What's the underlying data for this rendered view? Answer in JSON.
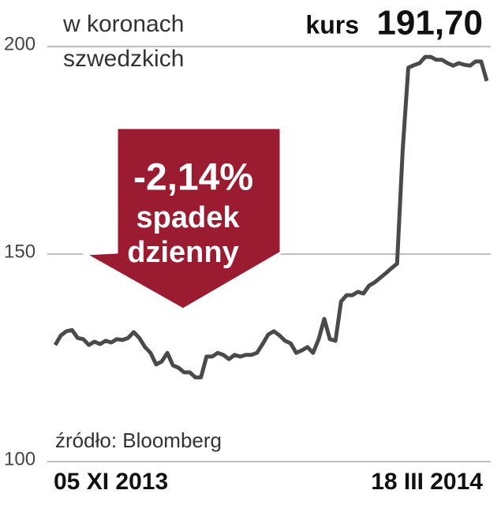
{
  "chart_data": {
    "type": "line",
    "subtitle_lines": [
      "w koronach",
      "szwedzkich"
    ],
    "price_caption": "kurs",
    "last_price": {
      "value": 191.7,
      "label": "191,70"
    },
    "change": {
      "value": -2.14,
      "label": "-2,14%"
    },
    "annotation_lines": [
      "spadek",
      "dzienny"
    ],
    "source": "źródło: Bloomberg",
    "categories": [
      "05 XI 2013",
      null,
      null,
      null,
      null,
      null,
      null,
      null,
      null,
      null,
      null,
      null,
      null,
      null,
      null,
      null,
      null,
      null,
      null,
      null,
      null,
      null,
      null,
      null,
      null,
      null,
      null,
      null,
      null,
      null,
      null,
      null,
      null,
      null,
      null,
      null,
      null,
      null,
      null,
      null,
      null,
      null,
      null,
      null,
      null,
      null,
      null,
      null,
      null,
      null,
      null,
      null,
      null,
      null,
      null,
      null,
      null,
      null,
      null,
      null,
      null,
      null,
      null,
      null,
      null,
      null,
      null,
      null,
      null,
      null,
      null,
      null,
      null,
      null,
      null,
      null,
      null,
      "18 III 2014"
    ],
    "series": [
      {
        "color": "#4a4a4a",
        "values": [
          128.1,
          130.4,
          131.4,
          131.7,
          129.8,
          129.5,
          128.1,
          128.9,
          128.3,
          129.1,
          128.7,
          129.5,
          129.3,
          129.8,
          131.2,
          129.8,
          127.6,
          126.2,
          123.4,
          124.1,
          126.2,
          123.2,
          122.6,
          121.5,
          121.5,
          120.3,
          120.3,
          125.3,
          125.3,
          126.2,
          125.7,
          124.7,
          125.7,
          125.3,
          125.7,
          125.7,
          126.2,
          128.3,
          130.6,
          131.4,
          130.4,
          129.1,
          128.5,
          126.2,
          126.8,
          127.6,
          126.2,
          129.5,
          134.4,
          129.5,
          129.1,
          138.6,
          140.1,
          140.1,
          140.9,
          140.5,
          142.4,
          143.2,
          144.3,
          145.4,
          146.6,
          147.7,
          175.1,
          194.9,
          195.5,
          196.0,
          197.5,
          197.5,
          196.8,
          196.8,
          196.0,
          195.4,
          196.0,
          195.6,
          195.4,
          196.4,
          196.4,
          191.7
        ]
      }
    ],
    "ylim": [
      100,
      200
    ],
    "yticks": [
      100,
      150,
      200
    ],
    "grid": true,
    "annotation_color": "#9b1b30"
  }
}
